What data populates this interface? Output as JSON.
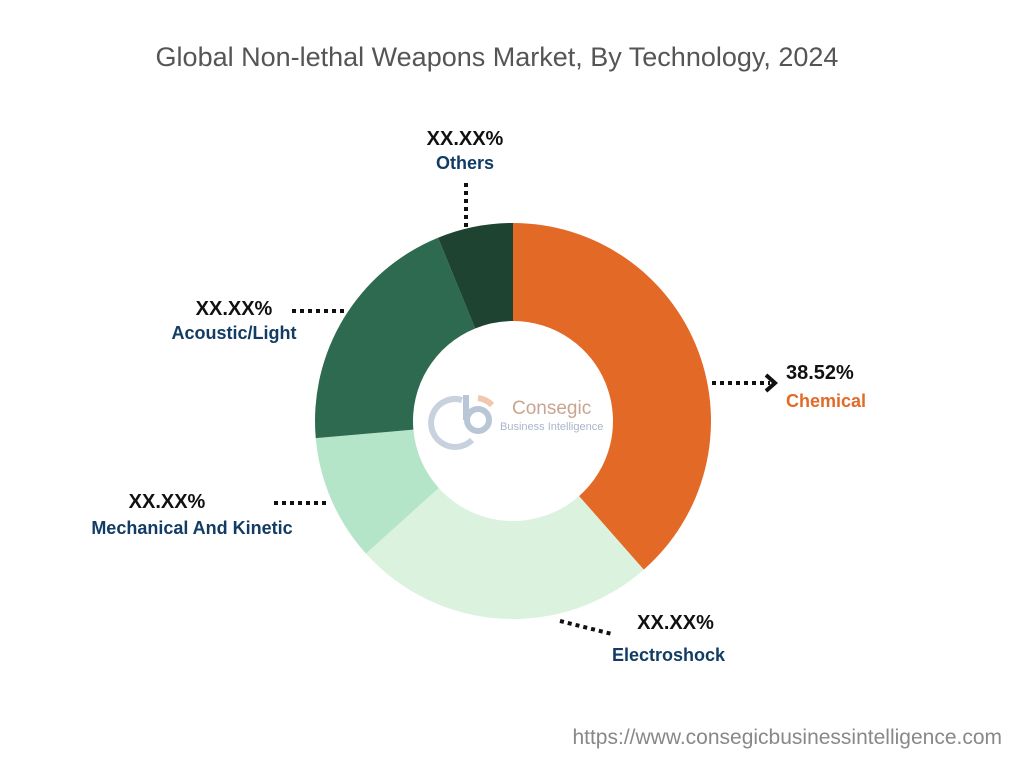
{
  "chart_data": {
    "type": "pie",
    "donut": true,
    "title": "Global Non-lethal Weapons Market, By Technology, 2024",
    "categories": [
      "Chemical",
      "Electroshock",
      "Mechanical And Kinetic",
      "Acoustic/Light",
      "Others"
    ],
    "values": [
      38.52,
      24.8,
      10.3,
      20.2,
      6.18
    ],
    "data_labels": [
      "38.52%",
      "XX.XX%",
      "XX.XX%",
      "XX.XX%",
      "XX.XX%"
    ],
    "colors": [
      "#E36A26",
      "#DAF2DE",
      "#B5E5C9",
      "#2E6A50",
      "#1E4431"
    ],
    "label_colors": [
      "#E36A26",
      "#123C64",
      "#123C64",
      "#123C64",
      "#123C64"
    ],
    "start_angle": "top",
    "direction": "clockwise",
    "legend": "none"
  },
  "logo": {
    "name": "Consegic",
    "tagline": "Business Intelligence"
  },
  "footer": {
    "url": "https://www.consegicbusinessintelligence.com"
  }
}
